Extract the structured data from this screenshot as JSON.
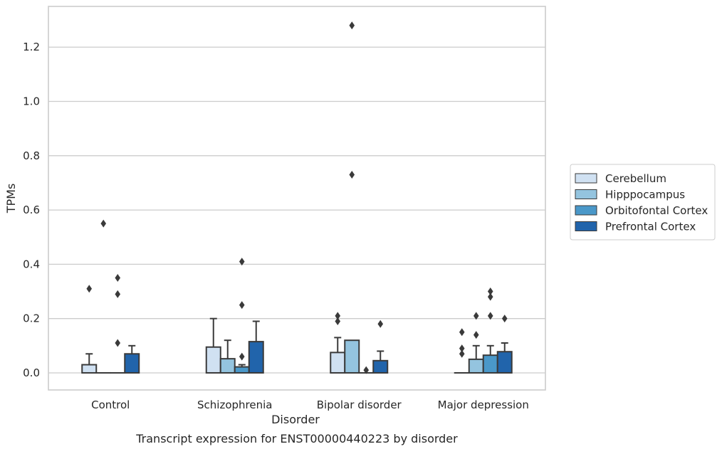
{
  "chart_data": {
    "type": "bar",
    "caption": "Transcript expression for ENST00000440223 by disorder",
    "xlabel": "Disorder",
    "ylabel": "TPMs",
    "ylim": [
      -0.063,
      1.35
    ],
    "yticks": [
      0.0,
      0.2,
      0.4,
      0.6,
      0.8,
      1.0,
      1.2
    ],
    "ytick_labels": [
      "0.0",
      "0.2",
      "0.4",
      "0.6",
      "0.8",
      "1.0",
      "1.2"
    ],
    "grid": "horizontal",
    "legend_position": "right",
    "categories": [
      "Control",
      "Schizophrenia",
      "Bipolar disorder",
      "Major depression"
    ],
    "series": [
      {
        "name": "Cerebellum",
        "color": "#d0e1f2",
        "values": [
          0.03,
          0.095,
          0.075,
          0.0
        ],
        "error_upper": [
          0.07,
          0.2,
          0.13,
          null
        ],
        "outliers": [
          [
            0.31
          ],
          [],
          [
            0.19,
            0.21
          ],
          [
            0.07,
            0.09,
            0.15
          ]
        ]
      },
      {
        "name": "Hipppocampus",
        "color": "#94c4df",
        "values": [
          0.0,
          0.052,
          0.12,
          0.05
        ],
        "error_upper": [
          null,
          0.12,
          null,
          0.1
        ],
        "outliers": [
          [
            0.55
          ],
          [],
          [
            0.73,
            1.28
          ],
          [
            0.14,
            0.21
          ]
        ]
      },
      {
        "name": "Orbitofontal Cortex",
        "color": "#4a98c9",
        "values": [
          0.0,
          0.022,
          0.0,
          0.065
        ],
        "error_upper": [
          null,
          0.03,
          null,
          0.1
        ],
        "outliers": [
          [
            0.11,
            0.29,
            0.35
          ],
          [
            0.06,
            0.25,
            0.41
          ],
          [
            0.01
          ],
          [
            0.21,
            0.28,
            0.3
          ]
        ]
      },
      {
        "name": "Prefrontal Cortex",
        "color": "#2164ab",
        "values": [
          0.07,
          0.115,
          0.045,
          0.078
        ],
        "error_upper": [
          0.1,
          0.19,
          0.08,
          0.11
        ],
        "outliers": [
          [],
          [],
          [
            0.18
          ],
          [
            0.2
          ]
        ]
      }
    ]
  }
}
